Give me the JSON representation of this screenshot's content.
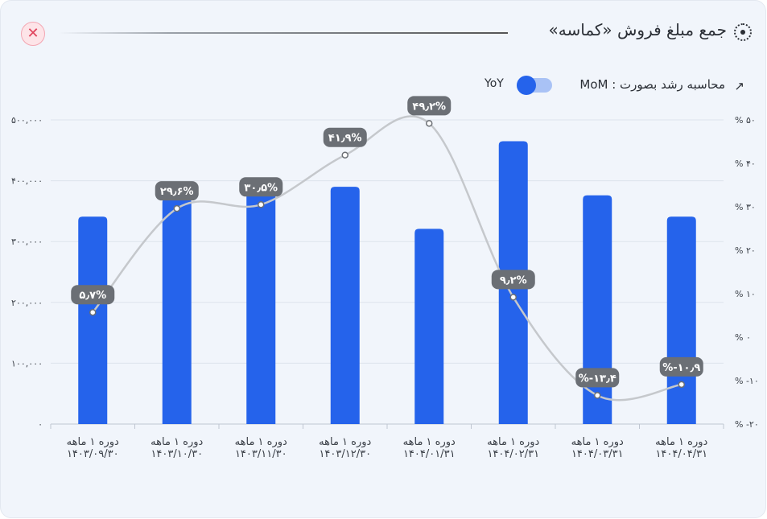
{
  "header": {
    "title": "جمع مبلغ فروش «کماسه»",
    "close_icon": "close-icon",
    "title_icon": "dotted-circle-icon"
  },
  "controls": {
    "growth_label": "محاسبه رشد بصورت : MoM",
    "growth_icon": "trend-arrow-icon",
    "yoy_label": "YoY",
    "toggle_state": "MoM"
  },
  "colors": {
    "bar": "#2563eb",
    "line": "#c5c8cc",
    "label_bg": "#6b6f75",
    "close": "#e0435c"
  },
  "chart_data": {
    "type": "bar",
    "categories": [
      [
        "دوره ۱ ماهه",
        "۱۴۰۳/۰۹/۳۰"
      ],
      [
        "دوره ۱ ماهه",
        "۱۴۰۳/۱۰/۳۰"
      ],
      [
        "دوره ۱ ماهه",
        "۱۴۰۳/۱۱/۳۰"
      ],
      [
        "دوره ۱ ماهه",
        "۱۴۰۳/۱۲/۳۰"
      ],
      [
        "دوره ۱ ماهه",
        "۱۴۰۴/۰۱/۳۱"
      ],
      [
        "دوره ۱ ماهه",
        "۱۴۰۴/۰۲/۳۱"
      ],
      [
        "دوره ۱ ماهه",
        "۱۴۰۴/۰۳/۳۱"
      ],
      [
        "دوره ۱ ماهه",
        "۱۴۰۴/۰۴/۳۱"
      ]
    ],
    "values": [
      341000,
      371000,
      384000,
      390000,
      321000,
      465000,
      376000,
      341000
    ],
    "ylim": [
      0,
      500000
    ],
    "yticks": [
      0,
      100000,
      200000,
      300000,
      400000,
      500000
    ],
    "ytick_labels": [
      "۰",
      "۱۰۰,۰۰۰",
      "۲۰۰,۰۰۰",
      "۳۰۰,۰۰۰",
      "۴۰۰,۰۰۰",
      "۵۰۰,۰۰۰"
    ],
    "growth": {
      "values": [
        5.7,
        29.6,
        30.5,
        41.9,
        49.2,
        9.2,
        -13.4,
        -10.9
      ],
      "labels": [
        "۵٫۷%",
        "۲۹٫۶%",
        "۳۰٫۵%",
        "۴۱٫۹%",
        "۴۹٫۲%",
        "۹٫۲%",
        "%-۱۳٫۴",
        "%-۱۰٫۹"
      ],
      "ylim": [
        -20,
        50
      ],
      "yticks": [
        -20,
        -10,
        0,
        10,
        20,
        30,
        40,
        50
      ],
      "ytick_labels": [
        "% -۲۰",
        "% -۱۰",
        "% ۰",
        "% ۱۰",
        "% ۲۰",
        "% ۳۰",
        "% ۴۰",
        "% ۵۰"
      ]
    },
    "grid": true
  }
}
